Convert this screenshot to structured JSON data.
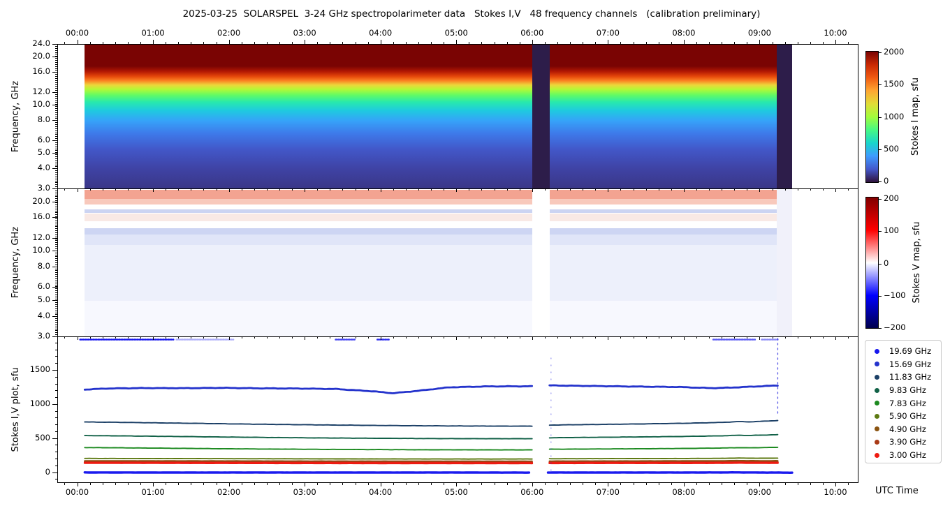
{
  "title": "2025-03-25  SOLARSPEL  3-24 GHz spectropolarimeter data   Stokes I,V   48 frequency channels   (calibration preliminary)",
  "axes": {
    "time_ticks": [
      "00:00",
      "01:00",
      "02:00",
      "03:00",
      "04:00",
      "05:00",
      "06:00",
      "07:00",
      "08:00",
      "09:00",
      "10:00"
    ],
    "utc_label": "UTC Time",
    "freq_label": "Frequency, GHz",
    "stokes_plot_label": "Stokes I,V plot, sfu",
    "freq_ticks_panel1": [
      24.0,
      20.0,
      16.0,
      12.0,
      10.0,
      8.0,
      6.0,
      5.0,
      4.0,
      3.0
    ],
    "freq_ticks_panel2": [
      20.0,
      16.0,
      12.0,
      10.0,
      8.0,
      6.0,
      5.0,
      4.0,
      3.0
    ],
    "sfu_ticks_panel3": [
      1500,
      1000,
      500,
      0
    ]
  },
  "colorbars": {
    "stokes_i": {
      "label": "Stokes I map, sfu",
      "ticks": [
        "2000",
        "1500",
        "1000",
        "500",
        "0"
      ]
    },
    "stokes_v": {
      "label": "Stokes V map, sfu",
      "ticks": [
        "200",
        "100",
        "0",
        "−100",
        "−200"
      ]
    }
  },
  "legend": {
    "items": [
      {
        "label": "19.69 GHz",
        "color": "#1717ee"
      },
      {
        "label": "15.69 GHz",
        "color": "#2433cc"
      },
      {
        "label": "11.83 GHz",
        "color": "#1b3f66"
      },
      {
        "label": "9.83 GHz",
        "color": "#116147"
      },
      {
        "label": "7.83 GHz",
        "color": "#1d8a20"
      },
      {
        "label": "5.90 GHz",
        "color": "#5d7a12"
      },
      {
        "label": "4.90 GHz",
        "color": "#8a5310"
      },
      {
        "label": "3.90 GHz",
        "color": "#a93a16"
      },
      {
        "label": "3.00 GHz",
        "color": "#ee1a11"
      }
    ]
  },
  "chart_data": [
    {
      "type": "heatmap",
      "name": "Stokes I dynamic spectrum",
      "ylabel": "Frequency, GHz",
      "y_scale": "log",
      "y_ticks_ghz": [
        24,
        20,
        16,
        12,
        10,
        8,
        6,
        5,
        4,
        3
      ],
      "x_range_hours": [
        0,
        10.3
      ],
      "colormap": "turbo",
      "colorbar_label": "Stokes I map, sfu",
      "colorbar_range": [
        0,
        2000
      ],
      "data_start_hour": 0.09,
      "data_gap_hours": [
        5.99,
        6.22
      ],
      "data_end_hour": 9.23,
      "zero_tail_end_hour": 9.42,
      "freq_profile_sfu": [
        [
          24,
          2100
        ],
        [
          20,
          2050
        ],
        [
          18,
          1700
        ],
        [
          16,
          1250
        ],
        [
          14,
          1000
        ],
        [
          12,
          750
        ],
        [
          10,
          520
        ],
        [
          8,
          330
        ],
        [
          6,
          170
        ],
        [
          4,
          90
        ],
        [
          3,
          60
        ]
      ]
    },
    {
      "type": "heatmap",
      "name": "Stokes V dynamic spectrum",
      "ylabel": "Frequency, GHz",
      "y_scale": "log",
      "y_ticks_ghz": [
        20,
        16,
        12,
        10,
        8,
        6,
        5,
        4,
        3
      ],
      "colormap": "seismic",
      "colorbar_label": "Stokes V map, sfu",
      "colorbar_range": [
        -200,
        200
      ],
      "data_start_hour": 0.09,
      "data_gap_hours": [
        5.99,
        6.22
      ],
      "data_end_hour": 9.23,
      "bands": [
        {
          "f_top": 23.8,
          "f_bot": 21.0,
          "approx_sfu": 45,
          "color": "#f3a391"
        },
        {
          "f_top": 21.0,
          "f_bot": 19.4,
          "approx_sfu": 25,
          "color": "#f8c9bc"
        },
        {
          "f_top": 18.0,
          "f_bot": 17.2,
          "approx_sfu": -20,
          "color": "#ccd4f2"
        },
        {
          "f_top": 17.0,
          "f_bot": 15.3,
          "approx_sfu": 8,
          "color": "#f9e9e5"
        },
        {
          "f_top": 13.8,
          "f_bot": 12.7,
          "approx_sfu": -25,
          "color": "#cdd5f3"
        },
        {
          "f_top": 12.7,
          "f_bot": 10.9,
          "approx_sfu": -12,
          "color": "#e0e5f8"
        },
        {
          "f_top": 10.9,
          "f_bot": 5.0,
          "approx_sfu": -6,
          "color": "#edf0fb"
        },
        {
          "f_top": 5.0,
          "f_bot": 3.0,
          "approx_sfu": -2,
          "color": "#f7f8fe"
        }
      ]
    },
    {
      "type": "line",
      "name": "Stokes I,V time profiles at selected frequency channels",
      "ylabel": "Stokes I,V plot, sfu",
      "xlabel": "UTC Time",
      "ylim": [
        -150,
        1990
      ],
      "y_ticks": [
        0,
        500,
        1000,
        1500
      ],
      "grid": false,
      "legend_position": "outside-right",
      "note": "19.69 GHz Stokes I lies mostly above the y-limit (clipped at top edge ~1950+ sfu); thick blue band near 0 sfu = overlapping Stokes V curves",
      "series": [
        {
          "name": "19.69 GHz",
          "color": "#1717ee",
          "width": 2.6,
          "wiggle": 0,
          "clipped_top_segments_hours": [
            [
              0.03,
              1.26,
              1.0
            ],
            [
              1.3,
              2.05,
              0.35
            ],
            [
              3.4,
              3.65,
              0.8
            ],
            [
              3.95,
              4.12,
              0.9
            ],
            [
              8.38,
              8.93,
              0.7
            ],
            [
              9.02,
              9.23,
              0.5
            ]
          ]
        },
        {
          "name": "15.69 GHz",
          "color": "#2433cc",
          "width": 2.8,
          "wiggle": 5,
          "segments": [
            [
              [
                0.09,
                1222
              ],
              [
                0.4,
                1238
              ],
              [
                0.9,
                1244
              ],
              [
                1.4,
                1242
              ],
              [
                1.9,
                1247
              ],
              [
                2.4,
                1240
              ],
              [
                2.9,
                1237
              ],
              [
                3.4,
                1230
              ],
              [
                3.9,
                1196
              ],
              [
                4.15,
                1168
              ],
              [
                4.5,
                1205
              ],
              [
                4.9,
                1255
              ],
              [
                5.4,
                1268
              ],
              [
                5.99,
                1270
              ]
            ],
            [
              [
                6.22,
                1283
              ],
              [
                6.6,
                1277
              ],
              [
                7.0,
                1271
              ],
              [
                7.5,
                1264
              ],
              [
                7.9,
                1260
              ],
              [
                8.35,
                1243
              ],
              [
                8.6,
                1250
              ],
              [
                8.8,
                1260
              ],
              [
                9.0,
                1270
              ],
              [
                9.23,
                1282
              ]
            ]
          ]
        },
        {
          "name": "11.83 GHz",
          "color": "#1b3f66",
          "width": 1.9,
          "wiggle": 2.5,
          "segments": [
            [
              [
                0.09,
                746
              ],
              [
                0.5,
                742
              ],
              [
                1,
                734
              ],
              [
                1.5,
                727
              ],
              [
                2,
                719
              ],
              [
                2.5,
                712
              ],
              [
                3,
                706
              ],
              [
                3.5,
                700
              ],
              [
                4,
                695
              ],
              [
                4.5,
                691
              ],
              [
                5,
                688
              ],
              [
                5.5,
                686
              ],
              [
                5.99,
                685
              ]
            ],
            [
              [
                6.22,
                700
              ],
              [
                6.5,
                705
              ],
              [
                7,
                712
              ],
              [
                7.5,
                719
              ],
              [
                8,
                727
              ],
              [
                8.5,
                740
              ],
              [
                8.72,
                753
              ],
              [
                8.85,
                748
              ],
              [
                9.0,
                755
              ],
              [
                9.23,
                768
              ]
            ]
          ]
        },
        {
          "name": "9.83 GHz",
          "color": "#116147",
          "width": 1.9,
          "wiggle": 2,
          "segments": [
            [
              [
                0.09,
                547
              ],
              [
                0.5,
                543
              ],
              [
                1,
                537
              ],
              [
                1.5,
                531
              ],
              [
                2,
                525
              ],
              [
                2.5,
                519
              ],
              [
                3,
                514
              ],
              [
                3.5,
                510
              ],
              [
                4,
                507
              ],
              [
                4.5,
                504
              ],
              [
                5,
                502
              ],
              [
                5.5,
                501
              ],
              [
                5.99,
                501
              ]
            ],
            [
              [
                6.22,
                514
              ],
              [
                6.5,
                518
              ],
              [
                7,
                523
              ],
              [
                7.5,
                528
              ],
              [
                8,
                534
              ],
              [
                8.5,
                543
              ],
              [
                8.72,
                552
              ],
              [
                8.85,
                548
              ],
              [
                9,
                553
              ],
              [
                9.23,
                560
              ]
            ]
          ]
        },
        {
          "name": "7.83 GHz",
          "color": "#1d8a20",
          "width": 1.9,
          "wiggle": 2,
          "segments": [
            [
              [
                0.09,
                371
              ],
              [
                0.5,
                368
              ],
              [
                1,
                363
              ],
              [
                1.5,
                358
              ],
              [
                2,
                353
              ],
              [
                2.5,
                349
              ],
              [
                3,
                346
              ],
              [
                3.5,
                343
              ],
              [
                4,
                341
              ],
              [
                4.5,
                339
              ],
              [
                5,
                338
              ],
              [
                5.5,
                337
              ],
              [
                5.99,
                337
              ]
            ],
            [
              [
                6.22,
                346
              ],
              [
                6.5,
                348
              ],
              [
                7,
                351
              ],
              [
                7.5,
                354
              ],
              [
                8,
                358
              ],
              [
                8.5,
                364
              ],
              [
                8.72,
                370
              ],
              [
                8.85,
                367
              ],
              [
                9,
                370
              ],
              [
                9.23,
                375
              ]
            ]
          ]
        },
        {
          "name": "5.90 GHz",
          "color": "#5d7a12",
          "width": 1.9,
          "wiggle": 1.2,
          "segments": [
            [
              [
                0.09,
                212
              ],
              [
                1,
                210
              ],
              [
                2,
                208
              ],
              [
                3,
                206
              ],
              [
                4,
                204
              ],
              [
                5,
                203
              ],
              [
                5.99,
                203
              ]
            ],
            [
              [
                6.22,
                207
              ],
              [
                7,
                209
              ],
              [
                8,
                211
              ],
              [
                8.5,
                213
              ],
              [
                8.72,
                217
              ],
              [
                9,
                214
              ],
              [
                9.23,
                216
              ]
            ]
          ]
        },
        {
          "name": "4.90 GHz",
          "color": "#8a5310",
          "width": 2.2,
          "wiggle": 1.2,
          "segments": [
            [
              [
                0.09,
                176
              ],
              [
                1,
                175
              ],
              [
                2,
                174
              ],
              [
                3,
                172
              ],
              [
                4,
                171
              ],
              [
                5,
                170
              ],
              [
                5.99,
                170
              ]
            ],
            [
              [
                6.22,
                172
              ],
              [
                7,
                173
              ],
              [
                8,
                175
              ],
              [
                8.5,
                176
              ],
              [
                8.72,
                179
              ],
              [
                9,
                176
              ],
              [
                9.23,
                177
              ]
            ]
          ]
        },
        {
          "name": "3.90 GHz",
          "color": "#a93a16",
          "width": 2.6,
          "wiggle": 1.2,
          "segments": [
            [
              [
                0.09,
                161
              ],
              [
                1,
                160
              ],
              [
                2,
                159
              ],
              [
                3,
                158
              ],
              [
                4,
                157
              ],
              [
                5,
                156
              ],
              [
                5.99,
                156
              ]
            ],
            [
              [
                6.22,
                158
              ],
              [
                7,
                158
              ],
              [
                8,
                159
              ],
              [
                8.5,
                160
              ],
              [
                8.72,
                163
              ],
              [
                9,
                160
              ],
              [
                9.23,
                161
              ]
            ]
          ]
        },
        {
          "name": "3.00 GHz",
          "color": "#ee1a11",
          "width": 3.0,
          "wiggle": 1.2,
          "segments": [
            [
              [
                0.09,
                146
              ],
              [
                1,
                145
              ],
              [
                2,
                144
              ],
              [
                3,
                143
              ],
              [
                4,
                142
              ],
              [
                5,
                142
              ],
              [
                5.99,
                142
              ]
            ],
            [
              [
                6.22,
                143
              ],
              [
                7,
                144
              ],
              [
                8,
                144
              ],
              [
                8.5,
                145
              ],
              [
                8.72,
                148
              ],
              [
                9,
                145
              ],
              [
                9.23,
                146
              ]
            ]
          ]
        },
        {
          "name": "Stokes V near-zero band",
          "color": "#1a1aee",
          "width": 3.4,
          "wiggle": 1.5,
          "segments": [
            [
              [
                0.09,
                6
              ],
              [
                1,
                5
              ],
              [
                2,
                5
              ],
              [
                3,
                5
              ],
              [
                4,
                5
              ],
              [
                5,
                5
              ],
              [
                5.95,
                4
              ]
            ],
            [
              [
                6.2,
                5
              ],
              [
                7,
                5
              ],
              [
                8,
                5
              ],
              [
                8.72,
                7
              ],
              [
                9,
                5
              ],
              [
                9.42,
                3
              ]
            ]
          ]
        }
      ],
      "artifacts": {
        "end_dashed_vertical_hour": 9.23,
        "gap_edge_dots_hour": 6.24
      }
    }
  ]
}
